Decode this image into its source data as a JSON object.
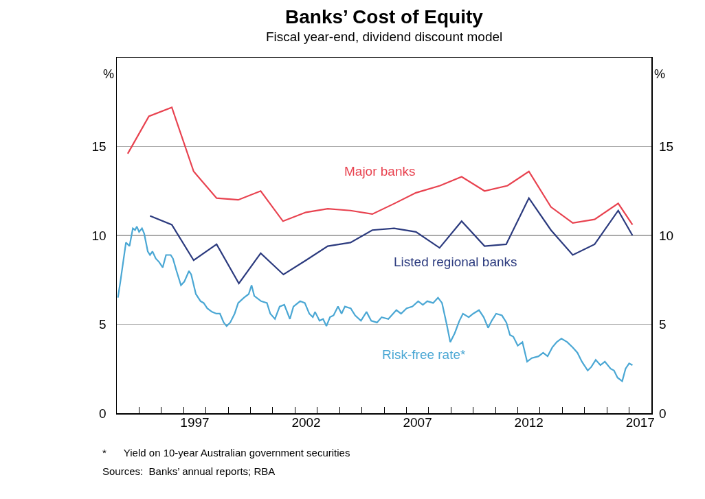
{
  "chart_data": {
    "type": "line",
    "title": "Banks’ Cost of Equity",
    "subtitle": "Fiscal year-end, dividend discount model",
    "ylabel": "%",
    "y2label": "%",
    "xlim": [
      1994,
      2018
    ],
    "xticks": [
      {
        "value": 1995,
        "label": null
      },
      {
        "value": 1996,
        "label": null
      },
      {
        "value": 1997,
        "label": null
      },
      {
        "value": 1998,
        "label": null
      },
      {
        "value": 1999,
        "label": null
      },
      {
        "value": 2000,
        "label": null
      },
      {
        "value": 2001,
        "label": null
      },
      {
        "value": 2002,
        "label": null
      },
      {
        "value": 2003,
        "label": null
      },
      {
        "value": 2004,
        "label": null
      },
      {
        "value": 2005,
        "label": null
      },
      {
        "value": 2006,
        "label": null
      },
      {
        "value": 2007,
        "label": null
      },
      {
        "value": 2008,
        "label": null
      },
      {
        "value": 2009,
        "label": null
      },
      {
        "value": 2010,
        "label": null
      },
      {
        "value": 2011,
        "label": null
      },
      {
        "value": 2012,
        "label": null
      },
      {
        "value": 2013,
        "label": null
      },
      {
        "value": 2014,
        "label": null
      },
      {
        "value": 2015,
        "label": null
      },
      {
        "value": 2016,
        "label": null
      },
      {
        "value": 2017,
        "label": null
      },
      {
        "value": 1997.5,
        "label": "1997"
      },
      {
        "value": 2002.5,
        "label": "2002"
      },
      {
        "value": 2007.5,
        "label": "2007"
      },
      {
        "value": 2012.5,
        "label": "2012"
      },
      {
        "value": 2017.5,
        "label": "2017"
      }
    ],
    "ylim": [
      0,
      20
    ],
    "yticks": [
      0,
      5,
      10,
      15
    ],
    "y2lim": [
      0,
      20
    ],
    "y2ticks": [
      0,
      5,
      10,
      15
    ],
    "grid": "y",
    "legend": false,
    "marker": "none",
    "line_style": "solid",
    "series": [
      {
        "name": "Major banks",
        "color": "#e8424f",
        "x": [
          1994.49,
          1995.44,
          1996.47,
          1997.45,
          1998.48,
          1999.45,
          2000.46,
          2001.46,
          2002.49,
          2003.47,
          2004.49,
          2005.47,
          2006.47,
          2007.43,
          2008.51,
          2009.48,
          2010.51,
          2011.54,
          2012.5,
          2013.49,
          2014.47,
          2015.45,
          2016.51,
          2017.15
        ],
        "values": [
          14.6,
          16.7,
          17.2,
          13.6,
          12.1,
          12.0,
          12.5,
          10.8,
          11.3,
          11.5,
          11.4,
          11.2,
          11.8,
          12.4,
          12.8,
          13.3,
          12.5,
          12.8,
          13.6,
          11.6,
          10.7,
          10.9,
          11.8,
          10.6
        ]
      },
      {
        "name": "Listed regional banks",
        "color": "#2b3a7e",
        "x": [
          1995.49,
          1996.47,
          1997.45,
          1998.48,
          1999.48,
          2000.46,
          2001.48,
          2002.49,
          2003.47,
          2004.49,
          2005.47,
          2006.45,
          2007.43,
          2008.49,
          2009.48,
          2010.51,
          2011.48,
          2012.5,
          2013.49,
          2014.47,
          2015.45,
          2016.51,
          2017.15
        ],
        "values": [
          11.1,
          10.6,
          8.6,
          9.5,
          7.3,
          9.0,
          7.8,
          8.6,
          9.4,
          9.6,
          10.3,
          10.4,
          10.2,
          9.3,
          10.8,
          9.4,
          9.5,
          12.1,
          10.3,
          8.9,
          9.5,
          11.4,
          10.0
        ]
      },
      {
        "name": "Risk-free rate*",
        "color": "#4aa7d4",
        "x": [
          1994.05,
          1994.16,
          1994.41,
          1994.57,
          1994.72,
          1994.82,
          1994.9,
          1995.0,
          1995.13,
          1995.23,
          1995.39,
          1995.49,
          1995.6,
          1995.75,
          1995.9,
          1996.06,
          1996.21,
          1996.42,
          1996.52,
          1996.68,
          1996.88,
          1997.03,
          1997.24,
          1997.34,
          1997.55,
          1997.76,
          1997.9,
          1998.06,
          1998.27,
          1998.47,
          1998.63,
          1998.8,
          1998.93,
          1999.09,
          1999.29,
          1999.45,
          1999.71,
          1999.92,
          2000.05,
          2000.17,
          2000.48,
          2000.74,
          2000.89,
          2001.1,
          2001.31,
          2001.52,
          2001.77,
          2001.93,
          2002.23,
          2002.44,
          2002.64,
          2002.8,
          2002.9,
          2003.1,
          2003.26,
          2003.41,
          2003.57,
          2003.73,
          2003.93,
          2004.09,
          2004.24,
          2004.5,
          2004.7,
          2004.96,
          2005.21,
          2005.42,
          2005.68,
          2005.89,
          2006.19,
          2006.55,
          2006.76,
          2007.01,
          2007.27,
          2007.53,
          2007.74,
          2007.94,
          2008.2,
          2008.42,
          2008.6,
          2008.81,
          2008.97,
          2009.17,
          2009.38,
          2009.54,
          2009.8,
          2010.0,
          2010.26,
          2010.47,
          2010.67,
          2010.83,
          2011.03,
          2011.29,
          2011.49,
          2011.65,
          2011.8,
          2012.0,
          2012.21,
          2012.42,
          2012.63,
          2012.93,
          2013.14,
          2013.34,
          2013.55,
          2013.75,
          2013.96,
          2014.22,
          2014.47,
          2014.68,
          2014.88,
          2015.14,
          2015.3,
          2015.5,
          2015.71,
          2015.91,
          2016.17,
          2016.32,
          2016.48,
          2016.69,
          2016.84,
          2017.0,
          2017.15
        ],
        "values": [
          6.5,
          7.4,
          9.6,
          9.4,
          10.4,
          10.3,
          10.5,
          10.2,
          10.4,
          10.1,
          9.1,
          8.9,
          9.1,
          8.7,
          8.5,
          8.2,
          8.9,
          8.9,
          8.7,
          8.0,
          7.2,
          7.4,
          8.0,
          7.8,
          6.7,
          6.3,
          6.2,
          5.9,
          5.7,
          5.6,
          5.6,
          5.1,
          4.9,
          5.1,
          5.6,
          6.2,
          6.5,
          6.7,
          7.2,
          6.6,
          6.3,
          6.2,
          5.6,
          5.3,
          6.0,
          6.1,
          5.3,
          6.0,
          6.3,
          6.2,
          5.6,
          5.4,
          5.7,
          5.2,
          5.3,
          4.9,
          5.4,
          5.5,
          6.0,
          5.6,
          6.0,
          5.9,
          5.5,
          5.2,
          5.7,
          5.2,
          5.1,
          5.4,
          5.3,
          5.8,
          5.6,
          5.9,
          6.0,
          6.3,
          6.1,
          6.3,
          6.2,
          6.5,
          6.2,
          5.0,
          4.0,
          4.5,
          5.2,
          5.6,
          5.4,
          5.6,
          5.8,
          5.4,
          4.8,
          5.2,
          5.6,
          5.5,
          5.1,
          4.4,
          4.3,
          3.8,
          4.0,
          2.9,
          3.1,
          3.2,
          3.4,
          3.2,
          3.7,
          4.0,
          4.2,
          4.0,
          3.7,
          3.4,
          2.9,
          2.4,
          2.6,
          3.0,
          2.7,
          2.9,
          2.5,
          2.4,
          2.0,
          1.8,
          2.5,
          2.8,
          2.7
        ]
      }
    ],
    "annotations": [
      "*      Yield on 10-year Australian government securities",
      "Sources:  Banks’ annual reports; RBA"
    ]
  }
}
